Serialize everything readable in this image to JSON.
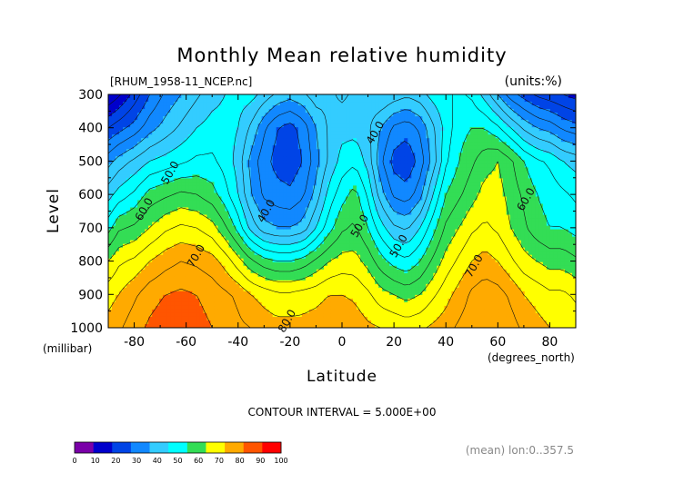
{
  "chart_data": {
    "type": "heatmap",
    "title": "Monthly Mean relative humidity",
    "dataset_label": "[RHUM_1958-11_NCEP.nc]",
    "units_label": "(units:%)",
    "xlabel": "Latitude",
    "x_units": "(degrees_north)",
    "ylabel": "Level",
    "y_units": "(millibar)",
    "x_ticks": [
      "-80",
      "-60",
      "-40",
      "-20",
      "0",
      "20",
      "40",
      "60",
      "80"
    ],
    "x_tick_values": [
      -80,
      -60,
      -40,
      -20,
      0,
      20,
      40,
      60,
      80
    ],
    "y_ticks": [
      "300",
      "400",
      "500",
      "600",
      "700",
      "800",
      "900",
      "1000"
    ],
    "y_tick_values": [
      300,
      400,
      500,
      600,
      700,
      800,
      900,
      1000
    ],
    "xlim": [
      -90,
      90
    ],
    "ylim": [
      1000,
      300
    ],
    "contour_interval_text": "CONTOUR INTERVAL = 5.000E+00",
    "footer_note": "(mean) lon:0..357.5",
    "colorbar_levels": [
      "0",
      "10",
      "20",
      "30",
      "40",
      "50",
      "60",
      "70",
      "80",
      "90",
      "100"
    ],
    "colorbar_colors": [
      "#7a00a8",
      "#0000cc",
      "#0044e6",
      "#1188ff",
      "#33ccff",
      "#00ffff",
      "#33dd55",
      "#ffff00",
      "#ffaa00",
      "#ff5500",
      "#ff0000"
    ],
    "contour_labels": [
      {
        "text": "50.0",
        "lat": -65,
        "lev": 540
      },
      {
        "text": "60.0",
        "lat": -75,
        "lev": 650
      },
      {
        "text": "70.0",
        "lat": -55,
        "lev": 790
      },
      {
        "text": "40.0",
        "lat": -28,
        "lev": 655
      },
      {
        "text": "40.0",
        "lat": 14,
        "lev": 420
      },
      {
        "text": "50.0",
        "lat": 8,
        "lev": 700
      },
      {
        "text": "50.0",
        "lat": 23,
        "lev": 760
      },
      {
        "text": "80.0",
        "lat": -20,
        "lev": 985
      },
      {
        "text": "70.0",
        "lat": 52,
        "lev": 820
      },
      {
        "text": "60.0",
        "lat": 72,
        "lev": 620
      }
    ],
    "profile": {
      "lat": [
        -90,
        -86,
        -80,
        -74,
        -68,
        -62,
        -56,
        -50,
        -45,
        -40,
        -35,
        -30,
        -25,
        -20,
        -15,
        -10,
        -5,
        0,
        5,
        10,
        15,
        20,
        25,
        30,
        35,
        40,
        45,
        50,
        55,
        60,
        65,
        70,
        75,
        80,
        85,
        90
      ],
      "levels": [
        300,
        400,
        500,
        600,
        700,
        800,
        900,
        1000
      ],
      "rh": [
        [
          10,
          25,
          38,
          48,
          58,
          70,
          78,
          82
        ],
        [
          14,
          28,
          42,
          52,
          64,
          74,
          80,
          84
        ],
        [
          22,
          32,
          46,
          56,
          66,
          76,
          84,
          88
        ],
        [
          30,
          38,
          50,
          62,
          70,
          80,
          88,
          91
        ],
        [
          36,
          42,
          52,
          64,
          74,
          83,
          90,
          93
        ],
        [
          40,
          46,
          54,
          66,
          76,
          85,
          91,
          94
        ],
        [
          44,
          50,
          56,
          65,
          75,
          84,
          90,
          92
        ],
        [
          48,
          52,
          56,
          62,
          72,
          82,
          88,
          90
        ],
        [
          50,
          52,
          53,
          57,
          66,
          78,
          86,
          88
        ],
        [
          52,
          50,
          48,
          50,
          58,
          72,
          84,
          86
        ],
        [
          52,
          44,
          38,
          40,
          48,
          66,
          80,
          85
        ],
        [
          48,
          36,
          32,
          34,
          42,
          62,
          78,
          83
        ],
        [
          44,
          30,
          28,
          32,
          40,
          60,
          76,
          82
        ],
        [
          42,
          28,
          27,
          31,
          40,
          60,
          76,
          82
        ],
        [
          44,
          32,
          30,
          34,
          42,
          62,
          77,
          82
        ],
        [
          48,
          40,
          38,
          42,
          50,
          66,
          78,
          83
        ],
        [
          46,
          46,
          46,
          52,
          58,
          70,
          80,
          84
        ],
        [
          44,
          48,
          52,
          58,
          64,
          72,
          80,
          84
        ],
        [
          46,
          48,
          54,
          62,
          66,
          72,
          79,
          83
        ],
        [
          48,
          46,
          48,
          54,
          60,
          68,
          76,
          81
        ],
        [
          50,
          40,
          36,
          42,
          52,
          62,
          72,
          80
        ],
        [
          48,
          34,
          28,
          34,
          46,
          58,
          70,
          79
        ],
        [
          46,
          32,
          26,
          32,
          44,
          56,
          68,
          78
        ],
        [
          48,
          36,
          32,
          38,
          50,
          60,
          70,
          79
        ],
        [
          52,
          44,
          42,
          50,
          58,
          66,
          74,
          81
        ],
        [
          54,
          52,
          54,
          60,
          66,
          72,
          78,
          83
        ],
        [
          56,
          58,
          60,
          64,
          70,
          76,
          82,
          86
        ],
        [
          54,
          60,
          64,
          68,
          74,
          80,
          86,
          88
        ],
        [
          48,
          60,
          68,
          72,
          76,
          82,
          88,
          90
        ],
        [
          40,
          56,
          70,
          72,
          74,
          80,
          87,
          89
        ],
        [
          32,
          50,
          66,
          68,
          70,
          76,
          84,
          87
        ],
        [
          28,
          44,
          60,
          64,
          66,
          72,
          80,
          84
        ],
        [
          24,
          40,
          56,
          60,
          62,
          70,
          78,
          82
        ],
        [
          22,
          38,
          54,
          58,
          60,
          68,
          76,
          80
        ],
        [
          20,
          34,
          50,
          56,
          60,
          68,
          76,
          80
        ],
        [
          18,
          32,
          48,
          54,
          58,
          66,
          74,
          78
        ]
      ]
    }
  }
}
